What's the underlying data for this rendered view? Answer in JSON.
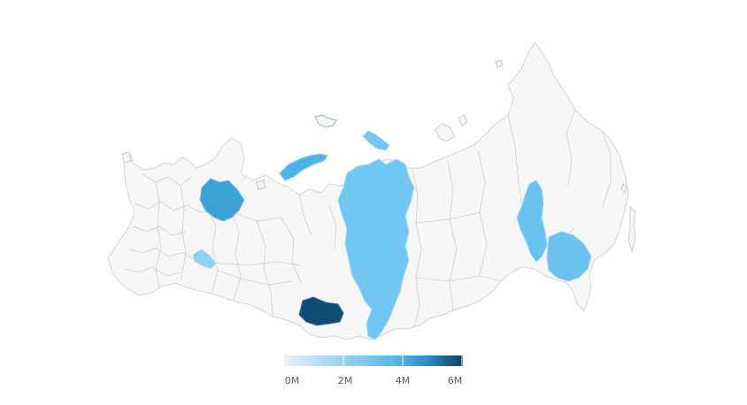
{
  "map": {
    "region_label": "Russia",
    "base_fill": "#f6f6f6",
    "border_color": "#d4d4d4",
    "highlighted_regions": [
      {
        "id": "krasnoyarsk",
        "value_millions": 2.9,
        "color": "#71c7f1"
      },
      {
        "id": "novaya-zemlya",
        "value_millions": 3.2,
        "color": "#4db4e6"
      },
      {
        "id": "sakha-east",
        "value_millions": 2.9,
        "color": "#6ac2ee"
      },
      {
        "id": "khabarovsk",
        "value_millions": 2.9,
        "color": "#6ac2ee"
      },
      {
        "id": "arkhangelsk",
        "value_millions": 3.6,
        "color": "#3da3d6"
      },
      {
        "id": "moscow-area",
        "value_millions": 2.3,
        "color": "#8dd0f2"
      },
      {
        "id": "novosibirsk",
        "value_millions": 6.0,
        "color": "#0f4c74"
      },
      {
        "id": "taymyr-islands",
        "value_millions": 2.9,
        "color": "#71c7f1"
      }
    ]
  },
  "legend": {
    "ticks": [
      "0M",
      "2M",
      "4M",
      "6M"
    ],
    "min": 0,
    "max": 6,
    "colors": [
      "#e8f1fb",
      "#9fd3f2",
      "#5bbbe9",
      "#2e8ec6",
      "#0d3f66"
    ]
  }
}
